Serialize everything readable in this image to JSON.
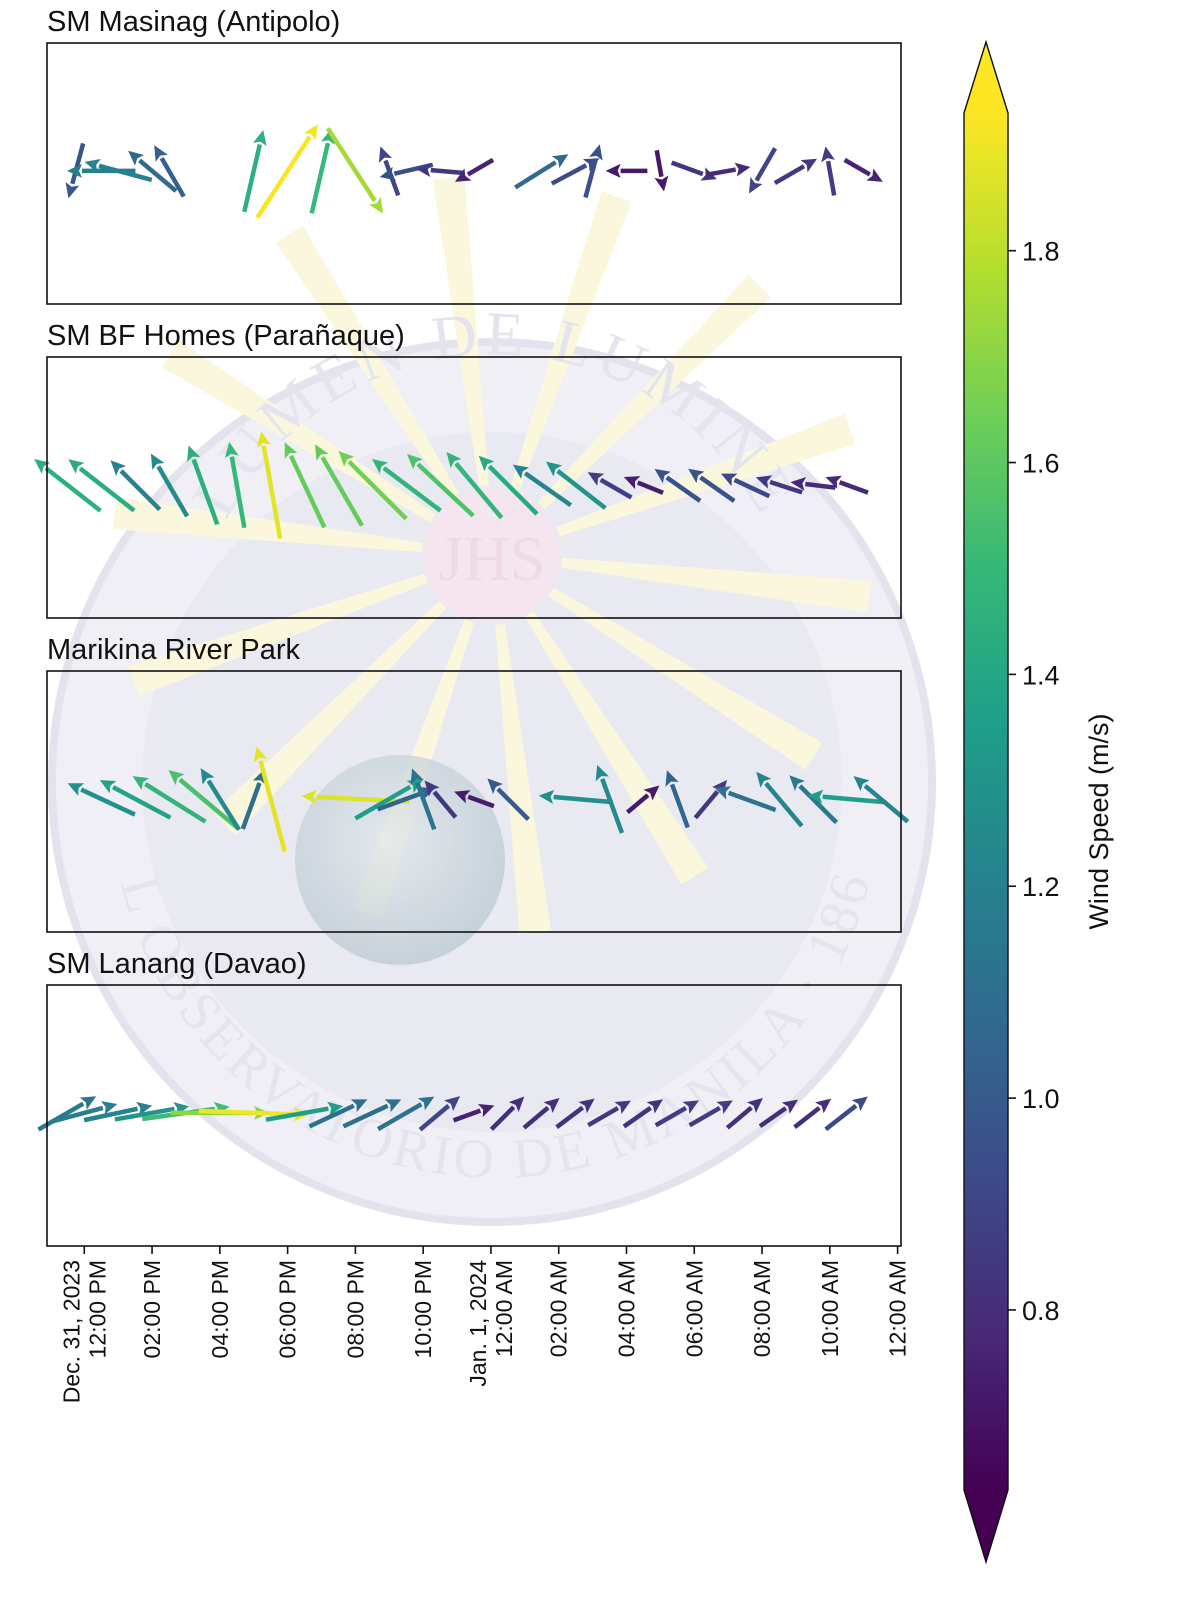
{
  "chart_data": {
    "type": "quiver",
    "x_axis": {
      "tick_labels": [
        [
          "Dec. 31, 2023",
          "12:00 PM"
        ],
        [
          "02:00 PM"
        ],
        [
          "04:00 PM"
        ],
        [
          "06:00 PM"
        ],
        [
          "08:00 PM"
        ],
        [
          "10:00 PM"
        ],
        [
          "Jan. 1, 2024",
          "12:00 AM"
        ],
        [
          "02:00 AM"
        ],
        [
          "04:00 AM"
        ],
        [
          "06:00 AM"
        ],
        [
          "08:00 AM"
        ],
        [
          "10:00 AM"
        ],
        [
          "12:00 AM"
        ]
      ],
      "tick_hours": [
        0,
        2,
        4,
        6,
        8,
        10,
        12,
        14,
        16,
        18,
        20,
        22,
        24
      ],
      "xlim_hours": [
        -1.1,
        24.1
      ]
    },
    "colorbar": {
      "label": "Wind Speed (m/s)",
      "range": [
        0.63,
        1.93
      ],
      "ticks": [
        0.8,
        1.0,
        1.2,
        1.4,
        1.6,
        1.8
      ],
      "extend": "both",
      "colormap": [
        "#440154",
        "#482878",
        "#3e4989",
        "#31688e",
        "#26828e",
        "#1f9e89",
        "#35b779",
        "#6ece58",
        "#b5de2b",
        "#fde725"
      ]
    },
    "panels": [
      {
        "title": "SM Masinag (Antipolo)",
        "vectors": [
          {
            "t": -0.25,
            "s": 0.98,
            "d": 15
          },
          {
            "t": 0.5,
            "s": 1.18,
            "d": 90
          },
          {
            "t": 1.0,
            "s": 1.2,
            "d": 105
          },
          {
            "t": 2.0,
            "s": 1.08,
            "d": 130
          },
          {
            "t": 2.5,
            "s": 1.02,
            "d": 150
          },
          {
            "t": 5.0,
            "s": 1.45,
            "d": 193
          },
          {
            "t": 6.0,
            "s": 1.92,
            "d": 213
          },
          {
            "t": 7.0,
            "s": 1.5,
            "d": 193
          },
          {
            "t": 8.0,
            "s": 1.75,
            "d": 327
          },
          {
            "t": 9.0,
            "s": 0.9,
            "d": 160
          },
          {
            "t": 9.5,
            "s": 0.94,
            "d": 77
          },
          {
            "t": 10.5,
            "s": 0.84,
            "d": 95
          },
          {
            "t": 11.5,
            "s": 0.76,
            "d": 60
          },
          {
            "t": 13.5,
            "s": 1.08,
            "d": 238
          },
          {
            "t": 14.5,
            "s": 0.93,
            "d": 242
          },
          {
            "t": 15.0,
            "s": 0.95,
            "d": 195
          },
          {
            "t": 16.0,
            "s": 0.72,
            "d": 90
          },
          {
            "t": 17.0,
            "s": 0.72,
            "d": 350
          },
          {
            "t": 18.0,
            "s": 0.83,
            "d": 290
          },
          {
            "t": 19.0,
            "s": 0.78,
            "d": 260
          },
          {
            "t": 20.0,
            "s": 0.9,
            "d": 30
          },
          {
            "t": 21.0,
            "s": 0.84,
            "d": 240
          },
          {
            "t": 22.0,
            "s": 0.86,
            "d": 170
          },
          {
            "t": 23.0,
            "s": 0.76,
            "d": 300
          }
        ]
      },
      {
        "title": "SM BF Homes (Parañaque)",
        "vectors": [
          {
            "t": -0.5,
            "s": 1.45,
            "d": 128
          },
          {
            "t": 0.5,
            "s": 1.44,
            "d": 128
          },
          {
            "t": 1.5,
            "s": 1.2,
            "d": 135
          },
          {
            "t": 2.5,
            "s": 1.25,
            "d": 150
          },
          {
            "t": 3.5,
            "s": 1.45,
            "d": 160
          },
          {
            "t": 4.5,
            "s": 1.5,
            "d": 170
          },
          {
            "t": 5.5,
            "s": 1.88,
            "d": 170
          },
          {
            "t": 6.5,
            "s": 1.62,
            "d": 155
          },
          {
            "t": 7.5,
            "s": 1.62,
            "d": 150
          },
          {
            "t": 8.5,
            "s": 1.65,
            "d": 135
          },
          {
            "t": 9.5,
            "s": 1.48,
            "d": 127
          },
          {
            "t": 10.5,
            "s": 1.56,
            "d": 133
          },
          {
            "t": 11.5,
            "s": 1.48,
            "d": 140
          },
          {
            "t": 12.5,
            "s": 1.42,
            "d": 135
          },
          {
            "t": 13.5,
            "s": 1.22,
            "d": 125
          },
          {
            "t": 14.5,
            "s": 1.3,
            "d": 128
          },
          {
            "t": 15.5,
            "s": 0.87,
            "d": 120
          },
          {
            "t": 16.5,
            "s": 0.73,
            "d": 112
          },
          {
            "t": 17.5,
            "s": 0.96,
            "d": 125
          },
          {
            "t": 18.5,
            "s": 0.97,
            "d": 125
          },
          {
            "t": 19.5,
            "s": 0.92,
            "d": 115
          },
          {
            "t": 20.5,
            "s": 0.84,
            "d": 108
          },
          {
            "t": 21.5,
            "s": 0.78,
            "d": 97
          },
          {
            "t": 22.5,
            "s": 0.78,
            "d": 110
          }
        ]
      },
      {
        "title": "Marikina River Park",
        "vectors": [
          {
            "t": 0.5,
            "s": 1.28,
            "d": 115
          },
          {
            "t": 1.5,
            "s": 1.38,
            "d": 118
          },
          {
            "t": 2.5,
            "s": 1.48,
            "d": 122
          },
          {
            "t": 3.5,
            "s": 1.55,
            "d": 130
          },
          {
            "t": 4.0,
            "s": 1.25,
            "d": 148
          },
          {
            "t": 5.0,
            "s": 1.1,
            "d": 200
          },
          {
            "t": 5.5,
            "s": 1.88,
            "d": 165
          },
          {
            "t": 8.0,
            "s": 1.86,
            "d": 93
          },
          {
            "t": 9.0,
            "s": 1.35,
            "d": 240
          },
          {
            "t": 9.5,
            "s": 1.05,
            "d": 250
          },
          {
            "t": 10.0,
            "s": 1.12,
            "d": 160
          },
          {
            "t": 10.5,
            "s": 0.83,
            "d": 140
          },
          {
            "t": 11.5,
            "s": 0.73,
            "d": 110
          },
          {
            "t": 12.5,
            "s": 1.0,
            "d": 135
          },
          {
            "t": 14.5,
            "s": 1.28,
            "d": 95
          },
          {
            "t": 15.5,
            "s": 1.25,
            "d": 160
          },
          {
            "t": 16.5,
            "s": 0.72,
            "d": 230
          },
          {
            "t": 17.5,
            "s": 1.05,
            "d": 160
          },
          {
            "t": 18.5,
            "s": 0.85,
            "d": 220
          },
          {
            "t": 19.5,
            "s": 1.12,
            "d": 110
          },
          {
            "t": 20.5,
            "s": 1.22,
            "d": 140
          },
          {
            "t": 21.5,
            "s": 1.15,
            "d": 135
          },
          {
            "t": 22.5,
            "s": 1.35,
            "d": 95
          },
          {
            "t": 23.5,
            "s": 1.22,
            "d": 130
          }
        ]
      },
      {
        "title": "SM Lanang (Davao)",
        "vectors": [
          {
            "t": -0.5,
            "s": 1.15,
            "d": 240
          },
          {
            "t": 0.0,
            "s": 1.18,
            "d": 255
          },
          {
            "t": 1.0,
            "s": 1.2,
            "d": 258
          },
          {
            "t": 2.0,
            "s": 1.3,
            "d": 260
          },
          {
            "t": 3.0,
            "s": 1.52,
            "d": 262
          },
          {
            "t": 4.0,
            "s": 1.7,
            "d": 270
          },
          {
            "t": 5.0,
            "s": 1.9,
            "d": 272
          },
          {
            "t": 6.5,
            "s": 1.35,
            "d": 260
          },
          {
            "t": 7.5,
            "s": 1.1,
            "d": 245
          },
          {
            "t": 8.5,
            "s": 1.1,
            "d": 245
          },
          {
            "t": 9.5,
            "s": 1.12,
            "d": 240
          },
          {
            "t": 10.5,
            "s": 0.9,
            "d": 230
          },
          {
            "t": 11.5,
            "s": 0.75,
            "d": 250
          },
          {
            "t": 12.5,
            "s": 0.8,
            "d": 225
          },
          {
            "t": 13.5,
            "s": 0.8,
            "d": 230
          },
          {
            "t": 14.5,
            "s": 0.82,
            "d": 233
          },
          {
            "t": 15.5,
            "s": 0.85,
            "d": 240
          },
          {
            "t": 16.5,
            "s": 0.82,
            "d": 235
          },
          {
            "t": 17.5,
            "s": 0.86,
            "d": 240
          },
          {
            "t": 18.5,
            "s": 0.86,
            "d": 240
          },
          {
            "t": 19.5,
            "s": 0.8,
            "d": 230
          },
          {
            "t": 20.5,
            "s": 0.8,
            "d": 235
          },
          {
            "t": 21.5,
            "s": 0.8,
            "d": 232
          },
          {
            "t": 22.5,
            "s": 0.92,
            "d": 232
          }
        ]
      }
    ]
  },
  "watermark": {
    "text_top": "LUMEN DE LUMINE",
    "text_bottom": "EL OBSERVATORIO DE MANILA · 1865",
    "monogram": "JHS"
  }
}
